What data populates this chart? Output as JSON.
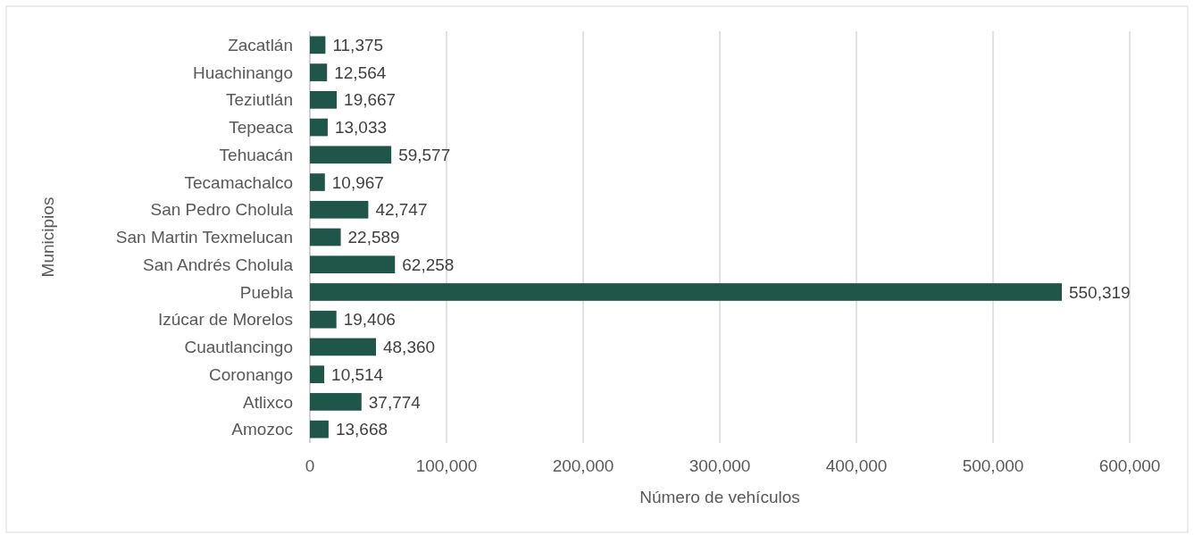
{
  "chart_data": {
    "type": "bar",
    "orientation": "horizontal",
    "xlabel": "Número de vehículos",
    "ylabel": "Municipios",
    "categories": [
      "Zacatlán",
      "Huachinango",
      "Teziutlán",
      "Tepeaca",
      "Tehuacán",
      "Tecamachalco",
      "San Pedro Cholula",
      "San Martin Texmelucan",
      "San Andrés Cholula",
      "Puebla",
      "Izúcar de Morelos",
      "Cuautlancingo",
      "Coronango",
      "Atlixco",
      "Amozoc"
    ],
    "values": [
      11375,
      12564,
      19667,
      13033,
      59577,
      10967,
      42747,
      22589,
      62258,
      550319,
      19406,
      48360,
      10514,
      37774,
      13668
    ],
    "value_labels": [
      "11,375",
      "12,564",
      "19,667",
      "13,033",
      "59,577",
      "10,967",
      "42,747",
      "22,589",
      "62,258",
      "550,319",
      "19,406",
      "48,360",
      "10,514",
      "37,774",
      "13,668"
    ],
    "color": "#20554a",
    "grid": "x",
    "xlim": [
      0,
      600000
    ],
    "xticks": [
      {
        "value": 0,
        "label": "0"
      },
      {
        "value": 100000,
        "label": "100,000"
      },
      {
        "value": 200000,
        "label": "200,000"
      },
      {
        "value": 300000,
        "label": "300,000"
      },
      {
        "value": 400000,
        "label": "400,000"
      },
      {
        "value": 500000,
        "label": "500,000"
      },
      {
        "value": 600000,
        "label": "600,000"
      }
    ]
  }
}
